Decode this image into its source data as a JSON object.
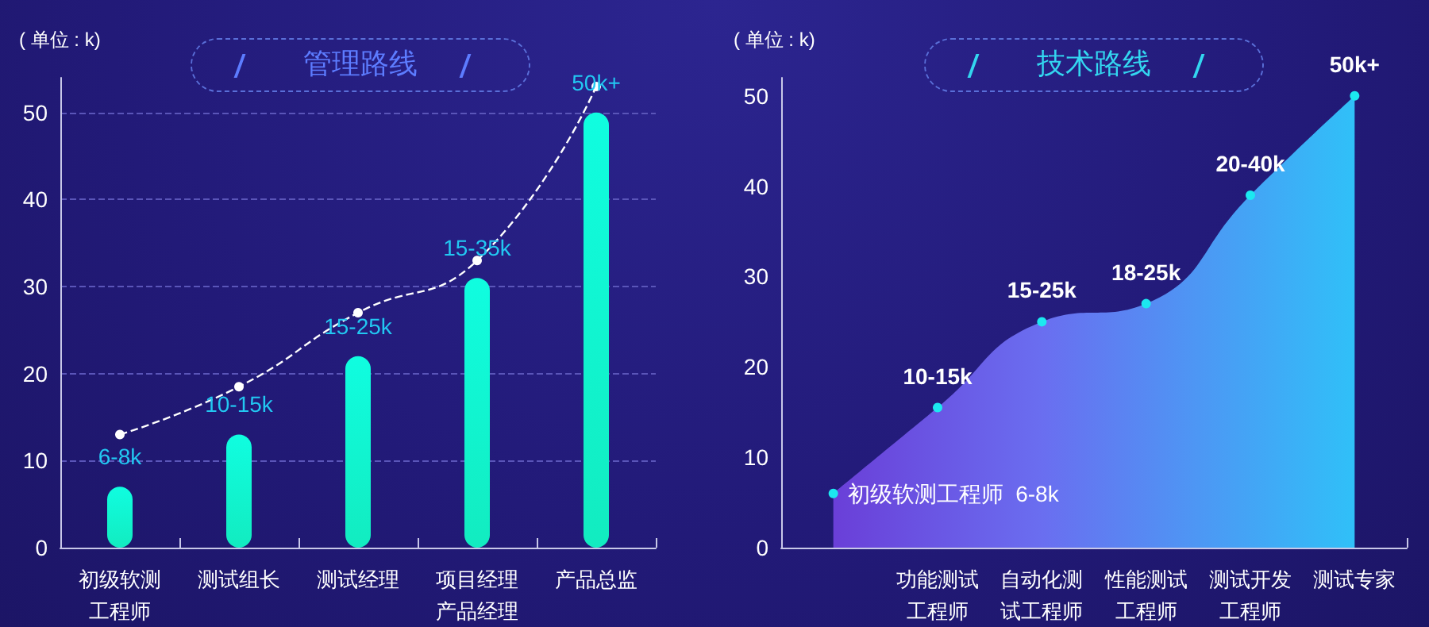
{
  "chart_data": [
    {
      "type": "bar",
      "title": "管理路线",
      "ylabel": "( 单位 : k)",
      "categories": [
        "初级软测工程师",
        "测试组长",
        "测试经理",
        "项目经理产品经理",
        "产品总监"
      ],
      "series": [
        {
          "color": "#12ecc0",
          "values": [
            7,
            13,
            22,
            31,
            50
          ],
          "value_labels": [
            "6-8k",
            "10-15k",
            "15-25k",
            "15-35k",
            "50k+"
          ]
        },
        {
          "type": "line",
          "color": "#ffffff",
          "values": [
            13,
            18.5,
            27,
            33,
            53
          ],
          "line_style": "dashed",
          "marker": "circle"
        }
      ],
      "ylim": [
        0,
        54
      ],
      "yticks": [
        0,
        10,
        20,
        30,
        40,
        50
      ],
      "grid": "y"
    },
    {
      "type": "area",
      "title": "技术路线",
      "ylabel": "( 单位 : k)",
      "categories": [
        null,
        "功能测试工程师",
        "自动化测试工程师",
        "性能测试工程师",
        "测试开发工程师",
        "测试专家"
      ],
      "series": [
        {
          "color": "#30c0f8",
          "values": [
            6,
            15.5,
            25,
            27,
            39,
            50
          ],
          "value_labels": [
            null,
            "10-15k",
            "15-25k",
            "18-25k",
            "20-40k",
            "50k+"
          ]
        }
      ],
      "annotations": [
        "初级软测工程师  6-8k"
      ],
      "marker": "circle",
      "ylim": [
        0,
        52
      ],
      "yticks": [
        0,
        10,
        20,
        30,
        40,
        50
      ],
      "grid": false
    }
  ]
}
